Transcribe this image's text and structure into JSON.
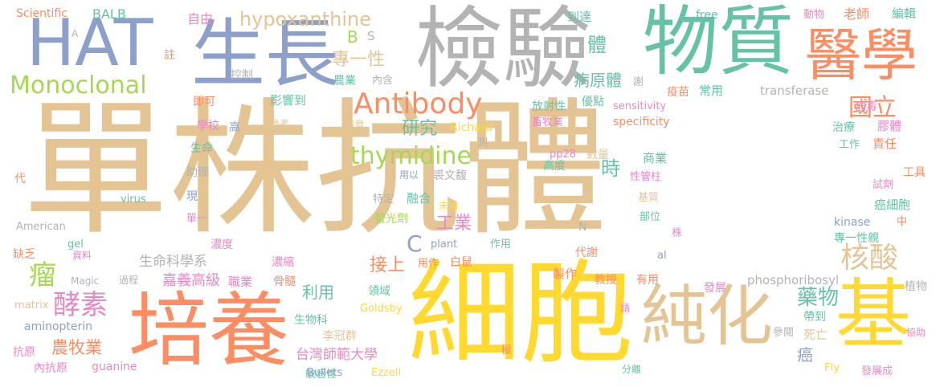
{
  "palette": {
    "tan": "#e5c494",
    "gray": "#b3b3b3",
    "green": "#66c2a5",
    "orange": "#fc8d62",
    "blue": "#8da0cb",
    "lime": "#a6d854",
    "yellow": "#ffd92f",
    "pink": "#e78ac3"
  },
  "words": [
    {
      "text": "單株抗體",
      "color": "tan"
    },
    {
      "text": "細胞",
      "color": "yellow"
    },
    {
      "text": "檢驗",
      "color": "gray"
    },
    {
      "text": "物質",
      "color": "green"
    },
    {
      "text": "HAT",
      "color": "blue"
    },
    {
      "text": "生長",
      "color": "blue"
    },
    {
      "text": "醫學",
      "color": "orange"
    },
    {
      "text": "培養",
      "color": "orange"
    },
    {
      "text": "純化",
      "color": "tan"
    },
    {
      "text": "基",
      "color": "yellow"
    },
    {
      "text": "Monoclonal",
      "color": "lime"
    },
    {
      "text": "Antibody",
      "color": "orange"
    },
    {
      "text": "thymidine",
      "color": "lime"
    },
    {
      "text": "hypoxanthine",
      "color": "tan"
    },
    {
      "text": "國立",
      "color": "orange"
    },
    {
      "text": "核酸",
      "color": "tan"
    },
    {
      "text": "酵素",
      "color": "pink"
    },
    {
      "text": "瘤",
      "color": "lime"
    },
    {
      "text": "藥物",
      "color": "green"
    },
    {
      "text": "C",
      "color": "blue"
    },
    {
      "text": "專一性",
      "color": "tan"
    },
    {
      "text": "體",
      "color": "green"
    },
    {
      "text": "研究",
      "color": "green"
    },
    {
      "text": "時",
      "color": "green"
    },
    {
      "text": "工業",
      "color": "pink"
    },
    {
      "text": "接上",
      "color": "orange"
    },
    {
      "text": "利用",
      "color": "green"
    },
    {
      "text": "農牧業",
      "color": "orange"
    },
    {
      "text": "生命科學系",
      "color": "gray"
    },
    {
      "text": "嘉義高級",
      "color": "pink"
    },
    {
      "text": "台灣師範大學",
      "color": "pink"
    },
    {
      "text": "病原體",
      "color": "green"
    },
    {
      "text": "BALB",
      "color": "green"
    },
    {
      "text": "Scientific",
      "color": "orange"
    },
    {
      "text": "自由",
      "color": "pink"
    },
    {
      "text": "A",
      "color": "gray"
    },
    {
      "text": "B",
      "color": "lime"
    },
    {
      "text": "S",
      "color": "gray"
    },
    {
      "text": "到達",
      "color": "green"
    },
    {
      "text": "free",
      "color": "green"
    },
    {
      "text": "動物",
      "color": "pink"
    },
    {
      "text": "老師",
      "color": "orange"
    },
    {
      "text": "編輯",
      "color": "green"
    },
    {
      "text": "註",
      "color": "orange"
    },
    {
      "text": "控制",
      "color": "gray"
    },
    {
      "text": "即可",
      "color": "orange"
    },
    {
      "text": "影響到",
      "color": "green"
    },
    {
      "text": "農業",
      "color": "green"
    },
    {
      "text": "內含",
      "color": "gray"
    },
    {
      "text": "優點",
      "color": "green"
    },
    {
      "text": "謝",
      "color": "gray"
    },
    {
      "text": "疫苗",
      "color": "orange"
    },
    {
      "text": "常用",
      "color": "green"
    },
    {
      "text": "transferase",
      "color": "gray"
    },
    {
      "text": "sensitivity",
      "color": "pink"
    },
    {
      "text": "specificity",
      "color": "orange"
    },
    {
      "text": "病毒",
      "color": "pink"
    },
    {
      "text": "放射性",
      "color": "green"
    },
    {
      "text": "畜牧業",
      "color": "pink"
    },
    {
      "text": "學校",
      "color": "pink"
    },
    {
      "text": "高",
      "color": "blue"
    },
    {
      "text": "參考",
      "color": "tan"
    },
    {
      "text": "隨意",
      "color": "tan"
    },
    {
      "text": "Richard",
      "color": "yellow"
    },
    {
      "text": "測",
      "color": "gray"
    },
    {
      "text": "治療",
      "color": "green"
    },
    {
      "text": "膠體",
      "color": "pink"
    },
    {
      "text": "工作",
      "color": "green"
    },
    {
      "text": "責任",
      "color": "orange"
    },
    {
      "text": "工具",
      "color": "orange"
    },
    {
      "text": "生命",
      "color": "green"
    },
    {
      "text": "pp28",
      "color": "pink"
    },
    {
      "text": "數量",
      "color": "tan"
    },
    {
      "text": "商業",
      "color": "green"
    },
    {
      "text": "代",
      "color": "orange"
    },
    {
      "text": "助理",
      "color": "gray"
    },
    {
      "text": "用以",
      "color": "blue"
    },
    {
      "text": "裘文馥",
      "color": "gray"
    },
    {
      "text": "高度",
      "color": "green"
    },
    {
      "text": "性管柱",
      "color": "pink"
    },
    {
      "text": "試劑",
      "color": "pink"
    },
    {
      "text": "virus",
      "color": "green"
    },
    {
      "text": "現",
      "color": "blue"
    },
    {
      "text": "特定",
      "color": "gray"
    },
    {
      "text": "融合",
      "color": "green"
    },
    {
      "text": "未知",
      "color": "yellow"
    },
    {
      "text": "基質",
      "color": "tan"
    },
    {
      "text": "癌細胞",
      "color": "green"
    },
    {
      "text": "單一",
      "color": "pink"
    },
    {
      "text": "螢光劑",
      "color": "lime"
    },
    {
      "text": "部位",
      "color": "green"
    },
    {
      "text": "中",
      "color": "orange"
    },
    {
      "text": "American",
      "color": "gray"
    },
    {
      "text": "N",
      "color": "gray"
    },
    {
      "text": "kinase",
      "color": "blue"
    },
    {
      "text": "gel",
      "color": "green"
    },
    {
      "text": "株",
      "color": "pink"
    },
    {
      "text": "專一性親",
      "color": "green"
    },
    {
      "text": "plant",
      "color": "blue"
    },
    {
      "text": "作用",
      "color": "green"
    },
    {
      "text": "缺乏",
      "color": "orange"
    },
    {
      "text": "資料",
      "color": "pink"
    },
    {
      "text": "濃度",
      "color": "pink"
    },
    {
      "text": "代謝",
      "color": "orange"
    },
    {
      "text": "al",
      "color": "blue"
    },
    {
      "text": "用作",
      "color": "orange"
    },
    {
      "text": "白鼠",
      "color": "orange"
    },
    {
      "text": "Magic",
      "color": "gray"
    },
    {
      "text": "過程",
      "color": "gray"
    },
    {
      "text": "濃縮",
      "color": "pink"
    },
    {
      "text": "教授",
      "color": "orange"
    },
    {
      "text": "有用",
      "color": "orange"
    },
    {
      "text": "職業",
      "color": "pink"
    },
    {
      "text": "骨髓",
      "color": "orange"
    },
    {
      "text": "製作",
      "color": "orange"
    },
    {
      "text": "phosphoribosyl",
      "color": "gray"
    },
    {
      "text": "發展",
      "color": "pink"
    },
    {
      "text": "植物",
      "color": "gray"
    },
    {
      "text": "matrix",
      "color": "tan"
    },
    {
      "text": "領域",
      "color": "green"
    },
    {
      "text": "Goldsby",
      "color": "yellow"
    },
    {
      "text": "請",
      "color": "pink"
    },
    {
      "text": "aminopterin",
      "color": "blue"
    },
    {
      "text": "生物科",
      "color": "green"
    },
    {
      "text": "李冠群",
      "color": "tan"
    },
    {
      "text": "參閱",
      "color": "gray"
    },
    {
      "text": "死亡",
      "color": "tan"
    },
    {
      "text": "帶到",
      "color": "green"
    },
    {
      "text": "協助",
      "color": "pink"
    },
    {
      "text": "抗原",
      "color": "pink"
    },
    {
      "text": "敏感性",
      "color": "green"
    },
    {
      "text": "極",
      "color": "orange"
    },
    {
      "text": "癌",
      "color": "blue"
    },
    {
      "text": "內抗原",
      "color": "pink"
    },
    {
      "text": "guanine",
      "color": "pink"
    },
    {
      "text": "Bullets",
      "color": "blue"
    },
    {
      "text": "Ezzell",
      "color": "yellow"
    },
    {
      "text": "分離",
      "color": "green"
    },
    {
      "text": "Fly",
      "color": "yellow"
    },
    {
      "text": "發展成",
      "color": "pink"
    }
  ]
}
